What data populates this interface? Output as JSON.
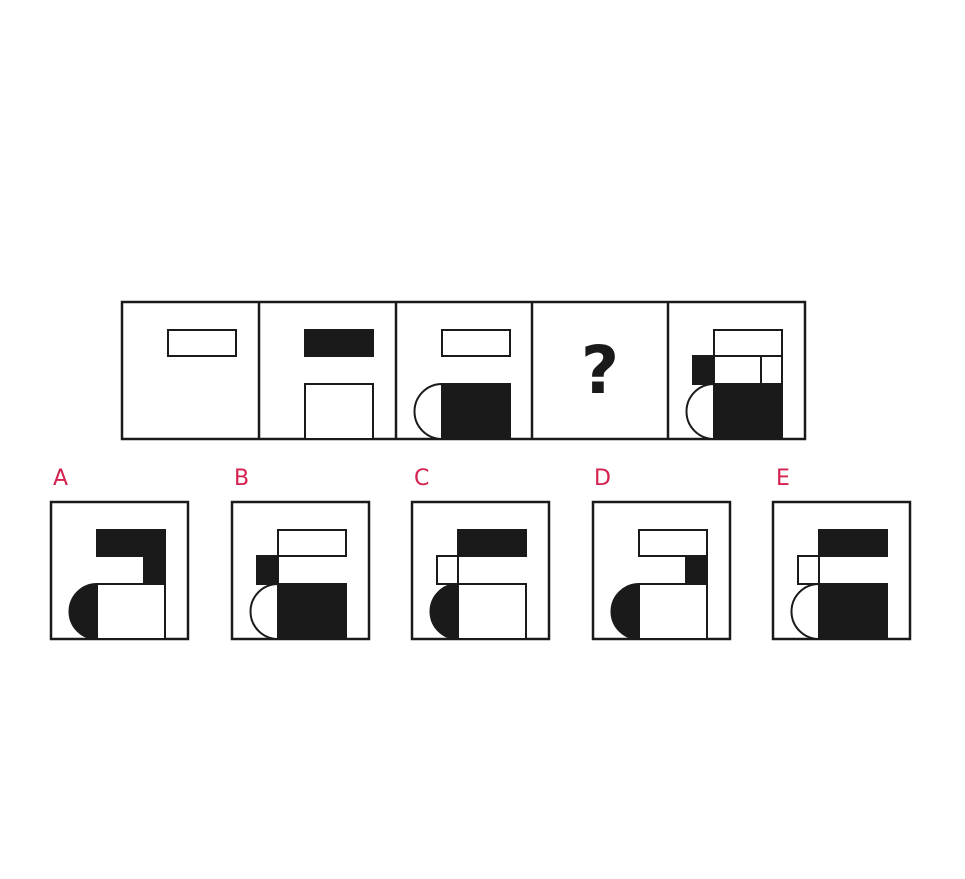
{
  "sequence": {
    "question_mark": "?"
  },
  "options": [
    {
      "label": "A"
    },
    {
      "label": "B"
    },
    {
      "label": "C"
    },
    {
      "label": "D"
    },
    {
      "label": "E"
    }
  ],
  "colors": {
    "stroke": "#1a1a1a",
    "fill_black": "#1a1a1a",
    "fill_white": "#ffffff",
    "label": "#d6204f"
  }
}
